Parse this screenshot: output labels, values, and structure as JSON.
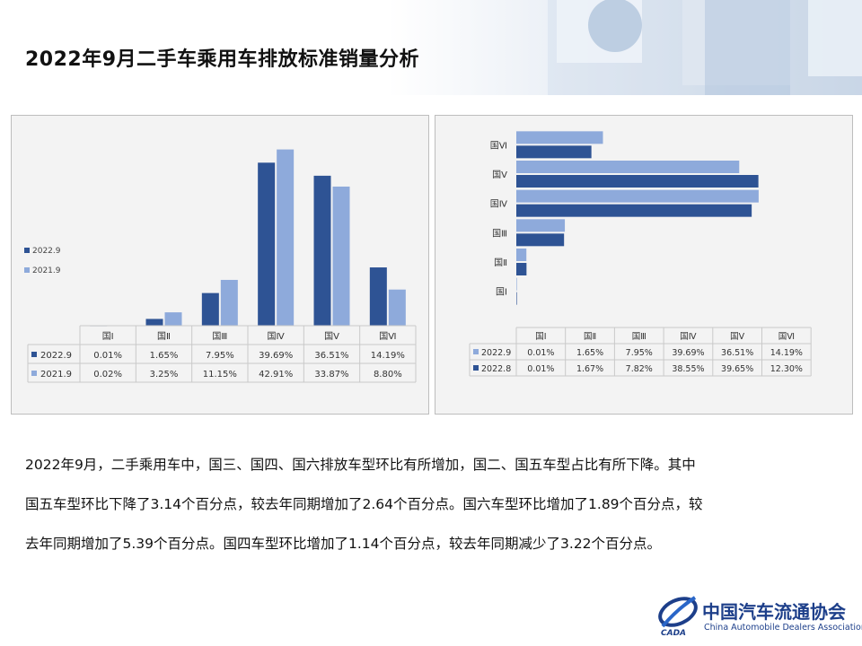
{
  "page": {
    "title": "2022年9月二手车乘用车排放标准销量分析",
    "description": [
      "2022年9月，二手乘用车中，国三、国四、国六排放车型环比有所增加，国二、国五车型占比有所下降。其中",
      "国五车型环比下降了3.14个百分点，较去年同期增加了2.64个百分点。国六车型环比增加了1.89个百分点，较",
      "去年同期增加了5.39个百分点。国四车型环比增加了1.14个百分点，较去年同期减少了3.22个百分点。"
    ]
  },
  "logo": {
    "cn": "中国汽车流通协会",
    "en": "China Automobile Dealers Association",
    "mark": "CADA"
  },
  "colors": {
    "dark": "#2e5394",
    "light": "#8eaadb",
    "panel_bg": "#f3f3f3",
    "border": "#bfbfbf"
  },
  "chart_data": [
    {
      "type": "bar",
      "orientation": "vertical",
      "categories": [
        "国Ⅰ",
        "国Ⅱ",
        "国Ⅲ",
        "国Ⅳ",
        "国Ⅴ",
        "国Ⅵ"
      ],
      "series": [
        {
          "name": "2022.9",
          "values": [
            0.01,
            1.65,
            7.95,
            39.69,
            36.51,
            14.19
          ],
          "labels": [
            "0.01%",
            "1.65%",
            "7.95%",
            "39.69%",
            "36.51%",
            "14.19%"
          ],
          "color": "#2e5394"
        },
        {
          "name": "2021.9",
          "values": [
            0.02,
            3.25,
            11.15,
            42.91,
            33.87,
            8.8
          ],
          "labels": [
            "0.02%",
            "3.25%",
            "11.15%",
            "42.91%",
            "33.87%",
            "8.80%"
          ],
          "color": "#8eaadb"
        }
      ],
      "legend": "left",
      "grid": false,
      "ylim": [
        0,
        45
      ],
      "data_table": true
    },
    {
      "type": "bar",
      "orientation": "horizontal",
      "categories": [
        "国Ⅰ",
        "国Ⅱ",
        "国Ⅲ",
        "国Ⅳ",
        "国Ⅴ",
        "国Ⅵ"
      ],
      "series": [
        {
          "name": "2022.9",
          "values": [
            0.01,
            1.65,
            7.95,
            39.69,
            36.51,
            14.19
          ],
          "labels": [
            "0.01%",
            "1.65%",
            "7.95%",
            "39.69%",
            "36.51%",
            "14.19%"
          ],
          "color": "#8eaadb"
        },
        {
          "name": "2022.8",
          "values": [
            0.01,
            1.67,
            7.82,
            38.55,
            39.65,
            12.3
          ],
          "labels": [
            "0.01%",
            "1.67%",
            "7.82%",
            "38.55%",
            "39.65%",
            "12.30%"
          ],
          "color": "#2e5394"
        }
      ],
      "grid": false,
      "xlim": [
        0,
        40
      ],
      "data_table": true
    }
  ]
}
